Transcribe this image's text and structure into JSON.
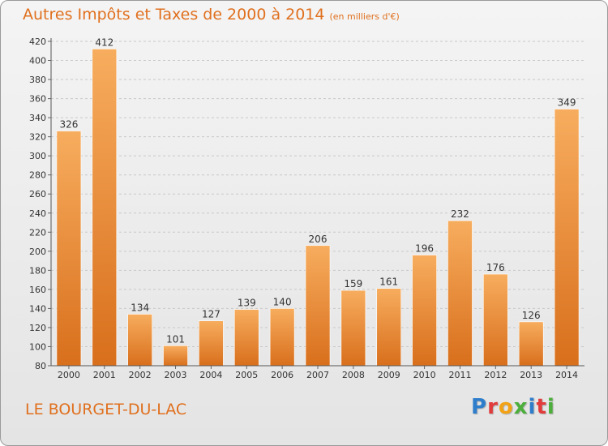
{
  "header": {
    "title": "Autres Impôts et Taxes de 2000 à 2014",
    "unit": "(en milliers d'€)"
  },
  "footer": {
    "city": "LE BOURGET-DU-LAC",
    "logo_letters": [
      "P",
      "r",
      "o",
      "x",
      "i",
      "t",
      "i"
    ]
  },
  "colors": {
    "accent": "#e0701e",
    "bar_light": "#f7ad5e",
    "bar_dark": "#d86f1c",
    "logo": [
      "#2f7ecb",
      "#e23b3b",
      "#f2a215",
      "#4caf3c",
      "#2f7ecb",
      "#e23b3b",
      "#4caf3c"
    ]
  },
  "chart_data": {
    "type": "bar",
    "title": "Autres Impôts et Taxes de 2000 à 2014",
    "subtitle": "(en milliers d'€)",
    "categories": [
      "2000",
      "2001",
      "2002",
      "2003",
      "2004",
      "2005",
      "2006",
      "2007",
      "2008",
      "2009",
      "2010",
      "2011",
      "2012",
      "2013",
      "2014"
    ],
    "values": [
      326,
      412,
      134,
      101,
      127,
      139,
      140,
      206,
      159,
      161,
      196,
      232,
      176,
      126,
      349
    ],
    "ylim": [
      80,
      420
    ],
    "yticks": [
      80,
      100,
      120,
      140,
      160,
      180,
      200,
      220,
      240,
      260,
      280,
      300,
      320,
      340,
      360,
      380,
      400,
      420
    ],
    "grid": true,
    "data_labels": true
  }
}
